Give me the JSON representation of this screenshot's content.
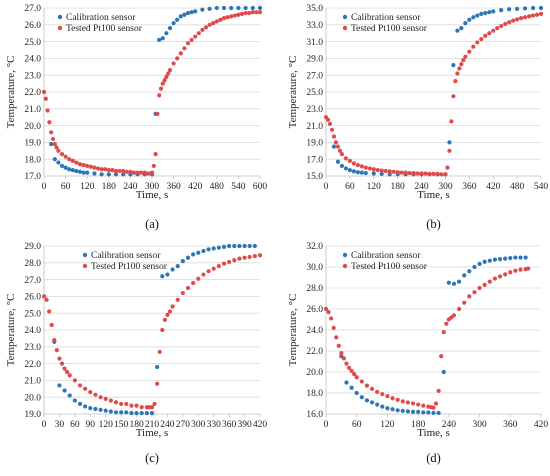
{
  "chart_data": [
    {
      "type": "scatter",
      "panel_label": "(a)",
      "xlabel": "Time, s",
      "ylabel": "Temperature, °C",
      "xlim": [
        0,
        600
      ],
      "ylim": [
        17.0,
        27.0
      ],
      "xticks": [
        0,
        60,
        120,
        180,
        240,
        300,
        360,
        420,
        480,
        540,
        600
      ],
      "yticks": [
        17.0,
        18.0,
        19.0,
        20.0,
        21.0,
        22.0,
        23.0,
        24.0,
        25.0,
        26.0,
        27.0
      ],
      "grid": "horizontal",
      "legend": "top-left",
      "series": [
        {
          "name": "Calibration sensor",
          "color": "#2e75b6",
          "x": [
            20,
            30,
            40,
            50,
            60,
            70,
            80,
            90,
            100,
            110,
            120,
            140,
            160,
            180,
            200,
            220,
            240,
            260,
            280,
            300,
            310,
            320,
            330,
            340,
            350,
            360,
            370,
            380,
            390,
            400,
            410,
            420,
            440,
            460,
            480,
            500,
            520,
            540,
            560,
            580,
            600
          ],
          "y": [
            18.9,
            18.0,
            17.8,
            17.6,
            17.5,
            17.4,
            17.35,
            17.3,
            17.25,
            17.2,
            17.2,
            17.15,
            17.1,
            17.1,
            17.1,
            17.1,
            17.1,
            17.1,
            17.1,
            17.1,
            20.7,
            25.1,
            25.2,
            25.5,
            25.8,
            26.1,
            26.3,
            26.5,
            26.6,
            26.7,
            26.75,
            26.8,
            26.9,
            26.95,
            27.0,
            27.0,
            27.0,
            27.0,
            27.0,
            27.0,
            27.0
          ]
        },
        {
          "name": "Tested Pt100 sensor",
          "color": "#e04a4a",
          "x": [
            0,
            5,
            10,
            15,
            20,
            25,
            30,
            35,
            40,
            50,
            60,
            70,
            80,
            90,
            100,
            110,
            120,
            130,
            140,
            150,
            160,
            170,
            180,
            190,
            200,
            210,
            220,
            230,
            240,
            250,
            260,
            270,
            280,
            290,
            300,
            305,
            310,
            315,
            320,
            325,
            330,
            335,
            340,
            345,
            350,
            360,
            370,
            380,
            390,
            400,
            410,
            420,
            430,
            440,
            450,
            460,
            470,
            480,
            490,
            500,
            510,
            520,
            530,
            540,
            550,
            560,
            570,
            580,
            590,
            600
          ],
          "y": [
            22.0,
            21.6,
            20.9,
            20.2,
            19.6,
            19.2,
            18.9,
            18.7,
            18.5,
            18.3,
            18.15,
            18.0,
            17.9,
            17.8,
            17.7,
            17.65,
            17.6,
            17.55,
            17.5,
            17.45,
            17.4,
            17.4,
            17.35,
            17.35,
            17.3,
            17.3,
            17.3,
            17.25,
            17.25,
            17.2,
            17.2,
            17.2,
            17.2,
            17.15,
            17.2,
            17.6,
            18.3,
            20.7,
            21.8,
            22.2,
            22.5,
            22.7,
            22.9,
            23.1,
            23.3,
            23.7,
            24.0,
            24.3,
            24.6,
            24.9,
            25.1,
            25.3,
            25.5,
            25.7,
            25.85,
            26.0,
            26.1,
            26.2,
            26.3,
            26.4,
            26.45,
            26.5,
            26.55,
            26.6,
            26.65,
            26.7,
            26.7,
            26.75,
            26.75,
            26.75
          ]
        }
      ]
    },
    {
      "type": "scatter",
      "panel_label": "(b)",
      "xlabel": "Time, s",
      "ylabel": "Temperature, °C",
      "xlim": [
        0,
        540
      ],
      "ylim": [
        15.0,
        35.0
      ],
      "xticks": [
        0,
        60,
        120,
        180,
        240,
        300,
        360,
        420,
        480,
        540
      ],
      "yticks": [
        15.0,
        17.0,
        19.0,
        21.0,
        23.0,
        25.0,
        27.0,
        29.0,
        31.0,
        33.0,
        35.0
      ],
      "grid": "horizontal",
      "legend": "top-left",
      "series": [
        {
          "name": "Calibration sensor",
          "color": "#2e75b6",
          "x": [
            20,
            30,
            40,
            50,
            60,
            70,
            80,
            90,
            100,
            120,
            140,
            160,
            180,
            200,
            220,
            240,
            260,
            280,
            300,
            310,
            320,
            330,
            340,
            350,
            360,
            370,
            380,
            390,
            400,
            410,
            420,
            440,
            460,
            480,
            500,
            520,
            540
          ],
          "y": [
            18.5,
            16.7,
            16.2,
            15.9,
            15.7,
            15.55,
            15.45,
            15.4,
            15.35,
            15.3,
            15.25,
            15.2,
            15.2,
            15.2,
            15.2,
            15.2,
            15.2,
            15.2,
            15.2,
            19.0,
            28.2,
            32.3,
            32.6,
            33.2,
            33.6,
            33.9,
            34.1,
            34.3,
            34.4,
            34.5,
            34.6,
            34.75,
            34.85,
            34.9,
            34.95,
            35.0,
            35.0
          ]
        },
        {
          "name": "Tested Pt100 sensor",
          "color": "#e04a4a",
          "x": [
            0,
            5,
            10,
            15,
            20,
            25,
            30,
            35,
            40,
            50,
            60,
            70,
            80,
            90,
            100,
            110,
            120,
            130,
            140,
            150,
            160,
            170,
            180,
            190,
            200,
            210,
            220,
            230,
            240,
            250,
            260,
            270,
            280,
            290,
            300,
            305,
            310,
            315,
            320,
            325,
            330,
            335,
            340,
            345,
            350,
            360,
            370,
            380,
            390,
            400,
            410,
            420,
            430,
            440,
            450,
            460,
            470,
            480,
            490,
            500,
            510,
            520,
            530,
            540
          ],
          "y": [
            22.0,
            21.7,
            21.2,
            20.5,
            19.7,
            19.0,
            18.5,
            18.0,
            17.6,
            17.1,
            16.8,
            16.5,
            16.3,
            16.15,
            16.0,
            15.9,
            15.8,
            15.7,
            15.65,
            15.6,
            15.55,
            15.5,
            15.45,
            15.4,
            15.4,
            15.35,
            15.35,
            15.3,
            15.3,
            15.3,
            15.25,
            15.25,
            15.25,
            15.2,
            15.2,
            16.0,
            18.0,
            21.5,
            24.5,
            26.3,
            27.2,
            27.8,
            28.3,
            28.8,
            29.2,
            29.8,
            30.4,
            30.9,
            31.3,
            31.7,
            32.0,
            32.3,
            32.6,
            32.85,
            33.1,
            33.3,
            33.5,
            33.65,
            33.8,
            33.9,
            34.0,
            34.1,
            34.2,
            34.3
          ]
        }
      ]
    },
    {
      "type": "scatter",
      "panel_label": "(c)",
      "xlabel": "Time, s",
      "ylabel": "Temperature, °C",
      "xlim": [
        0,
        420
      ],
      "ylim": [
        19.0,
        29.0
      ],
      "xticks": [
        0,
        30,
        60,
        90,
        120,
        150,
        180,
        210,
        240,
        270,
        300,
        330,
        360,
        390,
        420
      ],
      "yticks": [
        19.0,
        20.0,
        21.0,
        22.0,
        23.0,
        24.0,
        25.0,
        26.0,
        27.0,
        28.0,
        29.0
      ],
      "grid": "horizontal",
      "legend": "top-center",
      "series": [
        {
          "name": "Calibration sensor",
          "color": "#2e75b6",
          "x": [
            20,
            30,
            40,
            50,
            60,
            70,
            80,
            90,
            100,
            110,
            120,
            130,
            140,
            150,
            160,
            170,
            180,
            190,
            200,
            210,
            220,
            230,
            240,
            250,
            260,
            270,
            280,
            290,
            300,
            310,
            320,
            330,
            340,
            350,
            360,
            370,
            380,
            390,
            400,
            410
          ],
          "y": [
            23.3,
            20.7,
            20.4,
            20.1,
            19.8,
            19.6,
            19.45,
            19.35,
            19.3,
            19.25,
            19.2,
            19.15,
            19.1,
            19.1,
            19.1,
            19.05,
            19.05,
            19.05,
            19.05,
            19.05,
            21.8,
            27.2,
            27.3,
            27.6,
            27.8,
            28.1,
            28.3,
            28.5,
            28.6,
            28.7,
            28.8,
            28.85,
            28.9,
            28.95,
            29.0,
            29.0,
            29.0,
            29.0,
            29.0,
            29.0
          ]
        },
        {
          "name": "Tested Pt100 sensor",
          "color": "#e04a4a",
          "x": [
            0,
            5,
            10,
            15,
            20,
            25,
            30,
            35,
            40,
            45,
            50,
            60,
            70,
            80,
            90,
            100,
            110,
            120,
            130,
            140,
            150,
            160,
            170,
            180,
            190,
            200,
            205,
            210,
            215,
            220,
            225,
            230,
            235,
            240,
            245,
            250,
            260,
            270,
            280,
            290,
            300,
            310,
            320,
            330,
            340,
            350,
            360,
            370,
            380,
            390,
            400,
            410,
            420
          ],
          "y": [
            26.0,
            25.8,
            25.1,
            24.3,
            23.4,
            22.8,
            22.3,
            22.0,
            21.7,
            21.5,
            21.3,
            21.0,
            20.7,
            20.5,
            20.3,
            20.15,
            20.0,
            19.9,
            19.8,
            19.7,
            19.6,
            19.6,
            19.5,
            19.5,
            19.4,
            19.4,
            19.4,
            19.4,
            19.6,
            20.8,
            22.7,
            24.0,
            24.6,
            24.9,
            25.1,
            25.4,
            25.8,
            26.2,
            26.5,
            26.8,
            27.05,
            27.3,
            27.5,
            27.65,
            27.8,
            27.95,
            28.05,
            28.15,
            28.25,
            28.3,
            28.35,
            28.4,
            28.45
          ]
        }
      ]
    },
    {
      "type": "scatter",
      "panel_label": "(d)",
      "xlabel": "Time, s",
      "ylabel": "Temperature, °C",
      "xlim": [
        0,
        420
      ],
      "ylim": [
        16.0,
        32.0
      ],
      "xticks": [
        0,
        60,
        120,
        180,
        240,
        300,
        360,
        420
      ],
      "yticks": [
        16.0,
        18.0,
        20.0,
        22.0,
        24.0,
        26.0,
        28.0,
        30.0,
        32.0
      ],
      "grid": "horizontal",
      "legend": "top-left",
      "series": [
        {
          "name": "Calibration sensor",
          "color": "#2e75b6",
          "x": [
            30,
            40,
            50,
            60,
            70,
            80,
            90,
            100,
            110,
            120,
            130,
            140,
            150,
            160,
            170,
            180,
            190,
            200,
            210,
            220,
            230,
            240,
            250,
            260,
            270,
            280,
            290,
            300,
            310,
            320,
            330,
            340,
            350,
            360,
            370,
            380,
            390
          ],
          "y": [
            21.5,
            19.0,
            18.5,
            18.0,
            17.6,
            17.3,
            17.1,
            16.9,
            16.7,
            16.55,
            16.45,
            16.35,
            16.3,
            16.25,
            16.2,
            16.2,
            16.15,
            16.15,
            16.1,
            16.1,
            20.0,
            28.5,
            28.4,
            28.6,
            29.2,
            29.6,
            30.0,
            30.3,
            30.5,
            30.6,
            30.7,
            30.75,
            30.8,
            30.85,
            30.9,
            30.9,
            30.9
          ]
        },
        {
          "name": "Tested Pt100 sensor",
          "color": "#e04a4a",
          "x": [
            0,
            5,
            10,
            15,
            20,
            25,
            30,
            35,
            40,
            45,
            50,
            55,
            60,
            70,
            80,
            90,
            100,
            110,
            120,
            130,
            140,
            150,
            160,
            170,
            180,
            190,
            200,
            205,
            210,
            215,
            220,
            225,
            230,
            235,
            240,
            245,
            250,
            260,
            270,
            280,
            290,
            300,
            310,
            320,
            330,
            340,
            350,
            360,
            370,
            380,
            390,
            395
          ],
          "y": [
            26.0,
            25.7,
            25.1,
            24.2,
            23.3,
            22.5,
            21.8,
            21.3,
            20.8,
            20.4,
            20.1,
            19.8,
            19.5,
            19.1,
            18.7,
            18.4,
            18.1,
            17.9,
            17.7,
            17.5,
            17.35,
            17.2,
            17.1,
            17.0,
            16.9,
            16.8,
            16.7,
            16.65,
            16.6,
            17.0,
            18.2,
            21.5,
            23.8,
            24.6,
            25.0,
            25.2,
            25.4,
            26.0,
            26.6,
            27.2,
            27.6,
            28.0,
            28.3,
            28.6,
            28.9,
            29.1,
            29.3,
            29.5,
            29.65,
            29.75,
            29.8,
            29.85
          ]
        }
      ]
    }
  ]
}
